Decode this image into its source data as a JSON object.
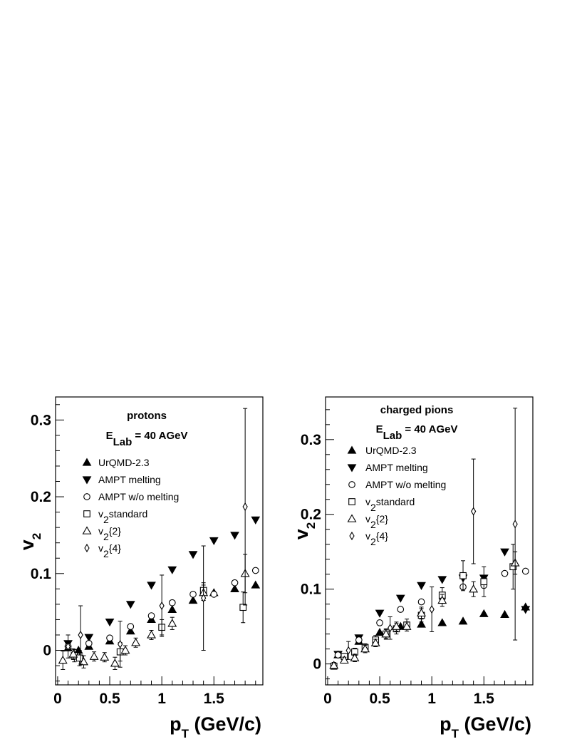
{
  "chart_data": [
    {
      "type": "scatter",
      "title": "protons",
      "subtitle": "E_Lab = 40 AGeV",
      "subtitle_parts": {
        "main": "E",
        "sub": "Lab",
        "rest": " = 40 AGeV"
      },
      "xlabel": "p_T (GeV/c)",
      "xlabel_parts": {
        "main": "p",
        "sub": "T",
        "rest": " (GeV/c)"
      },
      "ylabel": "v_2",
      "ylabel_parts": {
        "main": "v",
        "sub": "2"
      },
      "xlim": [
        -0.02,
        1.97
      ],
      "ylim": [
        -0.045,
        0.33
      ],
      "xticks": [
        {
          "v": 0,
          "label": "0"
        },
        {
          "v": 0.5,
          "label": "0.5"
        },
        {
          "v": 1,
          "label": "1"
        },
        {
          "v": 1.5,
          "label": "1.5"
        }
      ],
      "yticks": [
        {
          "v": 0,
          "label": "0"
        },
        {
          "v": 0.1,
          "label": "0.1"
        },
        {
          "v": 0.2,
          "label": "0.2"
        },
        {
          "v": 0.3,
          "label": "0.3"
        }
      ],
      "grid": false,
      "legend_position": "left",
      "series": [
        {
          "name": "UrQMD-2.3",
          "marker": "triangle-up-filled",
          "points": [
            {
              "x": 0.1,
              "y": 0.003
            },
            {
              "x": 0.2,
              "y": 0.0
            },
            {
              "x": 0.3,
              "y": 0.005
            },
            {
              "x": 0.5,
              "y": 0.012
            },
            {
              "x": 0.7,
              "y": 0.025
            },
            {
              "x": 0.9,
              "y": 0.04
            },
            {
              "x": 1.1,
              "y": 0.053
            },
            {
              "x": 1.3,
              "y": 0.065
            },
            {
              "x": 1.5,
              "y": 0.075
            },
            {
              "x": 1.7,
              "y": 0.08
            },
            {
              "x": 1.9,
              "y": 0.085
            }
          ]
        },
        {
          "name": "AMPT melting",
          "marker": "triangle-down-filled",
          "points": [
            {
              "x": 0.1,
              "y": 0.009
            },
            {
              "x": 0.3,
              "y": 0.017
            },
            {
              "x": 0.5,
              "y": 0.037
            },
            {
              "x": 0.7,
              "y": 0.06
            },
            {
              "x": 0.9,
              "y": 0.085
            },
            {
              "x": 1.1,
              "y": 0.105
            },
            {
              "x": 1.3,
              "y": 0.125
            },
            {
              "x": 1.5,
              "y": 0.143
            },
            {
              "x": 1.7,
              "y": 0.15
            },
            {
              "x": 1.9,
              "y": 0.17
            }
          ]
        },
        {
          "name": "AMPT w/o melting",
          "marker": "circle-open",
          "points": [
            {
              "x": 0.1,
              "y": 0.005
            },
            {
              "x": 0.3,
              "y": 0.009
            },
            {
              "x": 0.5,
              "y": 0.016
            },
            {
              "x": 0.7,
              "y": 0.031
            },
            {
              "x": 0.9,
              "y": 0.045
            },
            {
              "x": 1.1,
              "y": 0.062
            },
            {
              "x": 1.3,
              "y": 0.073
            },
            {
              "x": 1.5,
              "y": 0.073
            },
            {
              "x": 1.7,
              "y": 0.088
            },
            {
              "x": 1.9,
              "y": 0.104
            }
          ]
        },
        {
          "name": "v_2standard",
          "legend_parts": {
            "main": "v",
            "sub": "2",
            "rest": "standard"
          },
          "marker": "square-open",
          "points": [
            {
              "x": 0.16,
              "y": -0.007,
              "err": 0.008
            },
            {
              "x": 0.21,
              "y": -0.01,
              "err": 0.01
            },
            {
              "x": 0.6,
              "y": -0.002,
              "err": 0.012
            },
            {
              "x": 1.0,
              "y": 0.03,
              "err": 0.01
            },
            {
              "x": 1.4,
              "y": 0.078,
              "err": 0.01
            },
            {
              "x": 1.78,
              "y": 0.056,
              "err": 0.02
            }
          ]
        },
        {
          "name": "v_2{2}",
          "legend_parts": {
            "main": "v",
            "sub": "2",
            "rest": "{2}"
          },
          "marker": "triangle-up-open",
          "points": [
            {
              "x": 0.05,
              "y": -0.013,
              "err": 0.012
            },
            {
              "x": 0.15,
              "y": -0.005,
              "err": 0.007
            },
            {
              "x": 0.25,
              "y": -0.015,
              "err": 0.008
            },
            {
              "x": 0.35,
              "y": -0.008,
              "err": 0.006
            },
            {
              "x": 0.45,
              "y": -0.009,
              "err": 0.006
            },
            {
              "x": 0.55,
              "y": -0.017,
              "err": 0.008
            },
            {
              "x": 0.65,
              "y": 0.0,
              "err": 0.006
            },
            {
              "x": 0.75,
              "y": 0.01,
              "err": 0.006
            },
            {
              "x": 0.9,
              "y": 0.02,
              "err": 0.006
            },
            {
              "x": 1.1,
              "y": 0.035,
              "err": 0.008
            },
            {
              "x": 1.4,
              "y": 0.075,
              "err": 0.01
            },
            {
              "x": 1.8,
              "y": 0.1,
              "err": 0.025
            }
          ]
        },
        {
          "name": "v_2{4}",
          "legend_parts": {
            "main": "v",
            "sub": "2",
            "rest": "{4}"
          },
          "marker": "diamond-open",
          "points": [
            {
              "x": 0.1,
              "y": 0.005,
              "err": 0.015
            },
            {
              "x": 0.22,
              "y": 0.02,
              "err": 0.038
            },
            {
              "x": 0.6,
              "y": 0.008,
              "err": 0.03
            },
            {
              "x": 1.0,
              "y": 0.058,
              "err": 0.04
            },
            {
              "x": 1.4,
              "y": 0.068,
              "err": 0.068
            },
            {
              "x": 1.8,
              "y": 0.187,
              "err": 0.128
            }
          ]
        }
      ]
    },
    {
      "type": "scatter",
      "title": "charged pions",
      "subtitle": "E_Lab = 40 AGeV",
      "subtitle_parts": {
        "main": "E",
        "sub": "Lab",
        "rest": " = 40 AGeV"
      },
      "xlabel": "p_T (GeV/c)",
      "xlabel_parts": {
        "main": "p",
        "sub": "T",
        "rest": " (GeV/c)"
      },
      "ylabel": "v_2",
      "ylabel_parts": {
        "main": "v",
        "sub": "2"
      },
      "xlim": [
        -0.02,
        1.97
      ],
      "ylim": [
        -0.028,
        0.357
      ],
      "xticks": [
        {
          "v": 0,
          "label": "0"
        },
        {
          "v": 0.5,
          "label": "0.5"
        },
        {
          "v": 1,
          "label": "1"
        },
        {
          "v": 1.5,
          "label": "1.5"
        }
      ],
      "yticks": [
        {
          "v": 0,
          "label": "0"
        },
        {
          "v": 0.1,
          "label": "0.1"
        },
        {
          "v": 0.2,
          "label": "0.2"
        },
        {
          "v": 0.3,
          "label": "0.3"
        }
      ],
      "grid": false,
      "legend_position": "left",
      "series": [
        {
          "name": "UrQMD-2.3",
          "marker": "triangle-up-filled",
          "points": [
            {
              "x": 0.1,
              "y": 0.012
            },
            {
              "x": 0.3,
              "y": 0.03
            },
            {
              "x": 0.5,
              "y": 0.042
            },
            {
              "x": 0.7,
              "y": 0.05
            },
            {
              "x": 0.9,
              "y": 0.053
            },
            {
              "x": 1.1,
              "y": 0.055
            },
            {
              "x": 1.3,
              "y": 0.057
            },
            {
              "x": 1.5,
              "y": 0.067
            },
            {
              "x": 1.7,
              "y": 0.066
            },
            {
              "x": 1.9,
              "y": 0.076
            }
          ]
        },
        {
          "name": "AMPT melting",
          "marker": "triangle-down-filled",
          "points": [
            {
              "x": 0.1,
              "y": 0.013
            },
            {
              "x": 0.3,
              "y": 0.035
            },
            {
              "x": 0.5,
              "y": 0.068
            },
            {
              "x": 0.7,
              "y": 0.088
            },
            {
              "x": 0.9,
              "y": 0.105
            },
            {
              "x": 1.1,
              "y": 0.113
            },
            {
              "x": 1.3,
              "y": 0.115
            },
            {
              "x": 1.5,
              "y": 0.115
            },
            {
              "x": 1.7,
              "y": 0.15
            },
            {
              "x": 1.9,
              "y": 0.073
            }
          ]
        },
        {
          "name": "AMPT w/o melting",
          "marker": "circle-open",
          "points": [
            {
              "x": 0.1,
              "y": 0.012
            },
            {
              "x": 0.3,
              "y": 0.032
            },
            {
              "x": 0.5,
              "y": 0.055
            },
            {
              "x": 0.7,
              "y": 0.073
            },
            {
              "x": 0.9,
              "y": 0.083
            },
            {
              "x": 1.1,
              "y": 0.088
            },
            {
              "x": 1.3,
              "y": 0.103
            },
            {
              "x": 1.5,
              "y": 0.105
            },
            {
              "x": 1.7,
              "y": 0.121
            },
            {
              "x": 1.9,
              "y": 0.124
            }
          ]
        },
        {
          "name": "v_2standard",
          "legend_parts": {
            "main": "v",
            "sub": "2",
            "rest": "standard"
          },
          "marker": "square-open",
          "points": [
            {
              "x": 0.06,
              "y": -0.003,
              "err": 0.003
            },
            {
              "x": 0.16,
              "y": 0.01,
              "err": 0.004
            },
            {
              "x": 0.26,
              "y": 0.016,
              "err": 0.005
            },
            {
              "x": 0.36,
              "y": 0.022,
              "err": 0.005
            },
            {
              "x": 0.46,
              "y": 0.032,
              "err": 0.006
            },
            {
              "x": 0.56,
              "y": 0.04,
              "err": 0.007
            },
            {
              "x": 0.66,
              "y": 0.047,
              "err": 0.007
            },
            {
              "x": 0.76,
              "y": 0.052,
              "err": 0.008
            },
            {
              "x": 0.9,
              "y": 0.065,
              "err": 0.009
            },
            {
              "x": 1.1,
              "y": 0.092,
              "err": 0.01
            },
            {
              "x": 1.3,
              "y": 0.118,
              "err": 0.02
            },
            {
              "x": 1.5,
              "y": 0.11,
              "err": 0.02
            },
            {
              "x": 1.78,
              "y": 0.13,
              "err": 0.03
            }
          ]
        },
        {
          "name": "v_2{2}",
          "legend_parts": {
            "main": "v",
            "sub": "2",
            "rest": "{2}"
          },
          "marker": "triangle-up-open",
          "points": [
            {
              "x": 0.06,
              "y": -0.002,
              "err": 0.004
            },
            {
              "x": 0.16,
              "y": 0.005,
              "err": 0.004
            },
            {
              "x": 0.26,
              "y": 0.008,
              "err": 0.005
            },
            {
              "x": 0.36,
              "y": 0.02,
              "err": 0.005
            },
            {
              "x": 0.46,
              "y": 0.028,
              "err": 0.005
            },
            {
              "x": 0.56,
              "y": 0.04,
              "err": 0.006
            },
            {
              "x": 0.66,
              "y": 0.05,
              "err": 0.006
            },
            {
              "x": 0.76,
              "y": 0.05,
              "err": 0.006
            },
            {
              "x": 0.9,
              "y": 0.068,
              "err": 0.008
            },
            {
              "x": 1.1,
              "y": 0.085,
              "err": 0.008
            },
            {
              "x": 1.4,
              "y": 0.1,
              "err": 0.01
            },
            {
              "x": 1.8,
              "y": 0.135,
              "err": 0.015
            }
          ]
        },
        {
          "name": "v_2{4}",
          "legend_parts": {
            "main": "v",
            "sub": "2",
            "rest": "{4}"
          },
          "marker": "diamond-open",
          "points": [
            {
              "x": 0.2,
              "y": 0.018,
              "err": 0.012
            },
            {
              "x": 0.6,
              "y": 0.048,
              "err": 0.015
            },
            {
              "x": 1.0,
              "y": 0.073,
              "err": 0.03
            },
            {
              "x": 1.4,
              "y": 0.204,
              "err": 0.07
            },
            {
              "x": 1.8,
              "y": 0.187,
              "err": 0.155
            }
          ]
        }
      ]
    }
  ]
}
